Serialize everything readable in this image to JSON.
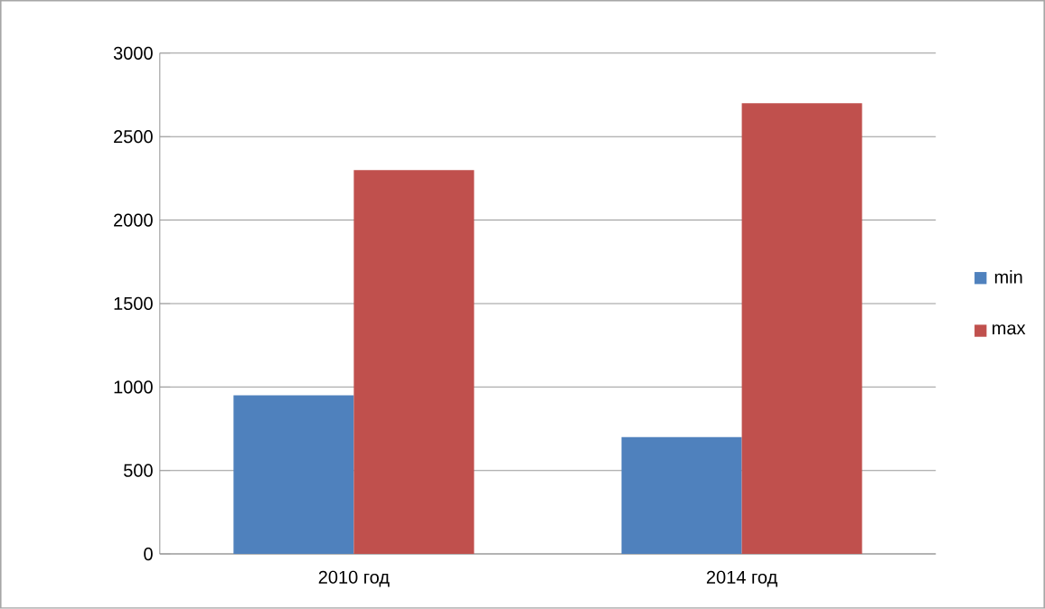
{
  "chart_data": {
    "type": "bar",
    "categories": [
      "2010 год",
      "2014 год"
    ],
    "series": [
      {
        "name": "min",
        "color": "#4f81bd",
        "values": [
          950,
          700
        ]
      },
      {
        "name": "max",
        "color": "#c0504d",
        "values": [
          2300,
          2700
        ]
      }
    ],
    "ylim": [
      0,
      3000
    ],
    "yticks": [
      0,
      500,
      1000,
      1500,
      2000,
      2500,
      3000
    ],
    "grid": "y",
    "legend": "right"
  }
}
